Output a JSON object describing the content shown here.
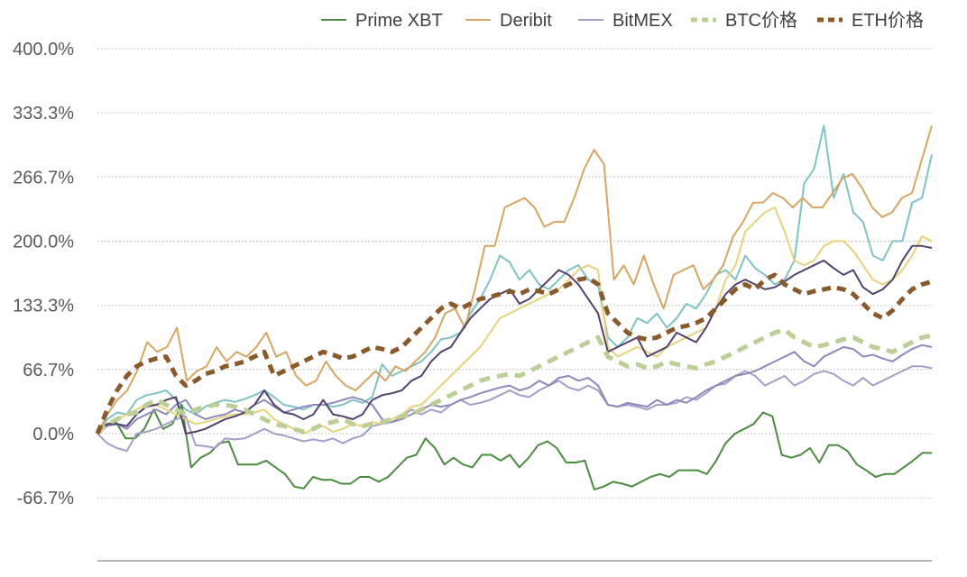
{
  "chart_data": {
    "type": "line",
    "ylim": [
      -0.7,
      4.0
    ],
    "yticks": [
      -0.667,
      0.0,
      0.667,
      1.333,
      2.0,
      2.667,
      3.333,
      4.0
    ],
    "ytick_labels": [
      "-66.7%",
      "0.0%",
      "66.7%",
      "133.3%",
      "200.0%",
      "266.7%",
      "333.3%",
      "400.0%"
    ],
    "grid": true,
    "legend": {
      "position": "top"
    },
    "series": [
      {
        "name": "",
        "color": "#7fc4c4",
        "dash": "none",
        "width": 2,
        "values": [
          0.0,
          0.15,
          0.22,
          0.2,
          0.35,
          0.4,
          0.42,
          0.45,
          0.35,
          0.25,
          0.2,
          0.28,
          0.32,
          0.35,
          0.33,
          0.36,
          0.4,
          0.45,
          0.38,
          0.3,
          0.28,
          0.25,
          0.3,
          0.3,
          0.28,
          0.3,
          0.35,
          0.32,
          0.38,
          0.72,
          0.6,
          0.65,
          0.7,
          0.75,
          0.85,
          0.98,
          1.0,
          1.05,
          1.25,
          1.4,
          1.6,
          1.85,
          1.78,
          1.6,
          1.7,
          1.55,
          1.5,
          1.6,
          1.7,
          1.75,
          1.6,
          1.55,
          1.0,
          0.9,
          1.0,
          1.2,
          1.15,
          1.25,
          1.1,
          1.2,
          1.35,
          1.3,
          1.45,
          1.65,
          1.7,
          1.6,
          1.85,
          1.72,
          1.65,
          1.55,
          1.6,
          1.8,
          2.6,
          2.75,
          3.2,
          2.45,
          2.7,
          2.3,
          2.2,
          1.85,
          1.8,
          2.0,
          2.0,
          2.4,
          2.45,
          2.9
        ]
      },
      {
        "name": "Prime XBT",
        "color": "#4a8c3f",
        "dash": "none",
        "width": 2,
        "values": [
          0.0,
          0.1,
          0.12,
          -0.05,
          -0.05,
          0.05,
          0.25,
          0.05,
          0.1,
          0.3,
          -0.35,
          -0.25,
          -0.2,
          -0.1,
          -0.08,
          -0.32,
          -0.32,
          -0.32,
          -0.28,
          -0.35,
          -0.42,
          -0.55,
          -0.57,
          -0.45,
          -0.48,
          -0.48,
          -0.52,
          -0.52,
          -0.45,
          -0.45,
          -0.5,
          -0.45,
          -0.35,
          -0.25,
          -0.22,
          -0.05,
          -0.15,
          -0.32,
          -0.25,
          -0.32,
          -0.35,
          -0.22,
          -0.22,
          -0.28,
          -0.22,
          -0.35,
          -0.25,
          -0.12,
          -0.08,
          -0.15,
          -0.3,
          -0.3,
          -0.28,
          -0.58,
          -0.55,
          -0.5,
          -0.52,
          -0.55,
          -0.5,
          -0.45,
          -0.42,
          -0.45,
          -0.38,
          -0.38,
          -0.38,
          -0.42,
          -0.28,
          -0.1,
          0.0,
          0.05,
          0.1,
          0.22,
          0.18,
          -0.22,
          -0.25,
          -0.22,
          -0.15,
          -0.3,
          -0.12,
          -0.12,
          -0.18,
          -0.32,
          -0.38,
          -0.45,
          -0.42,
          -0.42,
          -0.35,
          -0.28,
          -0.2,
          -0.2
        ]
      },
      {
        "name": "Deribit",
        "color": "#d9a562",
        "dash": "none",
        "width": 2,
        "values": [
          0.0,
          0.2,
          0.35,
          0.45,
          0.65,
          0.95,
          0.85,
          0.9,
          1.1,
          0.55,
          0.65,
          0.7,
          0.9,
          0.75,
          0.85,
          0.8,
          0.9,
          1.05,
          0.8,
          0.85,
          0.6,
          0.5,
          0.55,
          0.75,
          0.6,
          0.5,
          0.45,
          0.55,
          0.65,
          0.55,
          0.7,
          0.65,
          0.75,
          0.85,
          1.0,
          1.25,
          1.3,
          1.1,
          1.5,
          1.95,
          1.95,
          2.35,
          2.4,
          2.45,
          2.35,
          2.15,
          2.2,
          2.2,
          2.45,
          2.75,
          2.95,
          2.8,
          1.6,
          1.75,
          1.55,
          1.85,
          1.55,
          1.3,
          1.65,
          1.7,
          1.75,
          1.5,
          1.6,
          1.75,
          2.05,
          2.2,
          2.4,
          2.4,
          2.5,
          2.45,
          2.35,
          2.45,
          2.35,
          2.35,
          2.5,
          2.65,
          2.7,
          2.55,
          2.35,
          2.25,
          2.3,
          2.45,
          2.5,
          2.85,
          3.2
        ]
      },
      {
        "name": "BitMEX",
        "color": "#a39fc9",
        "dash": "none",
        "width": 2,
        "values": [
          0.0,
          -0.1,
          -0.15,
          -0.18,
          0.0,
          0.02,
          0.05,
          0.1,
          0.15,
          0.18,
          -0.12,
          -0.13,
          -0.15,
          -0.05,
          -0.06,
          -0.05,
          0.0,
          0.05,
          0.0,
          -0.02,
          -0.05,
          -0.08,
          -0.06,
          -0.08,
          -0.05,
          -0.1,
          -0.05,
          -0.02,
          0.08,
          0.1,
          0.12,
          0.18,
          0.25,
          0.2,
          0.25,
          0.22,
          0.3,
          0.35,
          0.3,
          0.32,
          0.35,
          0.4,
          0.45,
          0.4,
          0.38,
          0.45,
          0.5,
          0.55,
          0.48,
          0.45,
          0.5,
          0.45,
          0.3,
          0.28,
          0.3,
          0.28,
          0.25,
          0.3,
          0.3,
          0.32,
          0.38,
          0.35,
          0.42,
          0.5,
          0.52,
          0.6,
          0.65,
          0.6,
          0.5,
          0.55,
          0.6,
          0.5,
          0.55,
          0.62,
          0.65,
          0.62,
          0.55,
          0.5,
          0.58,
          0.5,
          0.55,
          0.6,
          0.65,
          0.7,
          0.7,
          0.68
        ]
      },
      {
        "name": "",
        "color": "#8e89bd",
        "dash": "none",
        "width": 2,
        "values": [
          0.0,
          0.08,
          0.1,
          0.05,
          0.15,
          0.2,
          0.25,
          0.2,
          0.3,
          0.35,
          0.2,
          0.15,
          0.18,
          0.2,
          0.25,
          0.22,
          0.3,
          0.35,
          0.28,
          0.22,
          0.25,
          0.28,
          0.3,
          0.3,
          0.32,
          0.35,
          0.38,
          0.35,
          0.3,
          0.15,
          0.12,
          0.15,
          0.2,
          0.25,
          0.3,
          0.28,
          0.3,
          0.35,
          0.38,
          0.42,
          0.45,
          0.48,
          0.5,
          0.45,
          0.48,
          0.55,
          0.5,
          0.58,
          0.6,
          0.55,
          0.58,
          0.5,
          0.3,
          0.28,
          0.32,
          0.3,
          0.28,
          0.35,
          0.3,
          0.35,
          0.32,
          0.38,
          0.45,
          0.5,
          0.55,
          0.6,
          0.62,
          0.65,
          0.7,
          0.75,
          0.8,
          0.85,
          0.75,
          0.7,
          0.8,
          0.85,
          0.9,
          0.88,
          0.8,
          0.82,
          0.78,
          0.75,
          0.82,
          0.88,
          0.92,
          0.9
        ]
      },
      {
        "name": "",
        "color": "#e8d27a",
        "dash": "none",
        "width": 2,
        "values": [
          0.0,
          0.1,
          0.15,
          0.2,
          0.25,
          0.3,
          0.3,
          0.25,
          0.2,
          0.15,
          0.1,
          0.12,
          0.15,
          0.18,
          0.2,
          0.2,
          0.22,
          0.25,
          0.15,
          0.1,
          0.05,
          0.0,
          0.05,
          0.08,
          0.02,
          0.05,
          0.1,
          0.08,
          0.12,
          0.1,
          0.15,
          0.2,
          0.28,
          0.3,
          0.4,
          0.5,
          0.6,
          0.7,
          0.8,
          0.9,
          1.05,
          1.2,
          1.25,
          1.3,
          1.35,
          1.4,
          1.45,
          1.5,
          1.6,
          1.7,
          1.75,
          1.7,
          0.9,
          0.8,
          0.85,
          0.9,
          0.85,
          0.8,
          0.9,
          0.95,
          1.0,
          1.05,
          1.1,
          1.3,
          1.6,
          1.75,
          2.1,
          2.2,
          2.3,
          2.35,
          2.1,
          1.8,
          1.75,
          1.8,
          1.95,
          2.0,
          2.0,
          1.9,
          1.75,
          1.6,
          1.55,
          1.6,
          1.7,
          1.85,
          2.05,
          2.0
        ]
      },
      {
        "name": "",
        "color": "#54426e",
        "dash": "none",
        "width": 2,
        "values": [
          0.0,
          0.1,
          0.1,
          0.08,
          0.2,
          0.28,
          0.3,
          0.35,
          0.38,
          0.0,
          0.02,
          0.05,
          0.1,
          0.15,
          0.18,
          0.22,
          0.3,
          0.45,
          0.3,
          0.22,
          0.2,
          0.15,
          0.2,
          0.35,
          0.2,
          0.18,
          0.15,
          0.2,
          0.35,
          0.4,
          0.42,
          0.45,
          0.55,
          0.6,
          0.75,
          0.85,
          0.9,
          1.05,
          1.2,
          1.3,
          1.4,
          1.45,
          1.5,
          1.35,
          1.4,
          1.5,
          1.6,
          1.7,
          1.65,
          1.55,
          1.4,
          1.25,
          0.85,
          0.9,
          0.95,
          1.0,
          0.8,
          0.85,
          0.9,
          1.05,
          1.0,
          0.95,
          1.1,
          1.3,
          1.45,
          1.55,
          1.6,
          1.55,
          1.5,
          1.52,
          1.58,
          1.65,
          1.7,
          1.75,
          1.8,
          1.72,
          1.65,
          1.7,
          1.52,
          1.45,
          1.5,
          1.6,
          1.8,
          1.95,
          1.95,
          1.93
        ]
      },
      {
        "name": "BTC价格",
        "color": "#bccf96",
        "dash": "12 8",
        "width": 5,
        "values": [
          0.0,
          0.1,
          0.15,
          0.2,
          0.22,
          0.3,
          0.35,
          0.3,
          0.25,
          0.2,
          0.25,
          0.28,
          0.3,
          0.3,
          0.28,
          0.25,
          0.2,
          0.15,
          0.1,
          0.08,
          0.05,
          0.02,
          0.05,
          0.1,
          0.12,
          0.15,
          0.1,
          0.08,
          0.1,
          0.12,
          0.15,
          0.18,
          0.2,
          0.25,
          0.3,
          0.35,
          0.4,
          0.45,
          0.5,
          0.55,
          0.58,
          0.6,
          0.62,
          0.6,
          0.65,
          0.7,
          0.75,
          0.8,
          0.85,
          0.9,
          0.95,
          1.0,
          0.8,
          0.75,
          0.7,
          0.72,
          0.68,
          0.7,
          0.75,
          0.72,
          0.7,
          0.68,
          0.72,
          0.75,
          0.8,
          0.85,
          0.9,
          0.95,
          1.0,
          1.05,
          1.08,
          1.0,
          0.95,
          0.9,
          0.92,
          0.95,
          0.98,
          1.0,
          0.95,
          0.9,
          0.88,
          0.85,
          0.9,
          0.95,
          1.0,
          1.02
        ]
      },
      {
        "name": "ETH价格",
        "color": "#8b5a2b",
        "dash": "10 7",
        "width": 5,
        "values": [
          0.0,
          0.25,
          0.45,
          0.6,
          0.7,
          0.75,
          0.78,
          0.8,
          0.6,
          0.5,
          0.55,
          0.62,
          0.65,
          0.7,
          0.72,
          0.75,
          0.8,
          0.85,
          0.6,
          0.65,
          0.7,
          0.75,
          0.8,
          0.85,
          0.82,
          0.78,
          0.8,
          0.85,
          0.9,
          0.88,
          0.85,
          0.9,
          1.0,
          1.1,
          1.2,
          1.3,
          1.35,
          1.3,
          1.35,
          1.4,
          1.42,
          1.45,
          1.48,
          1.45,
          1.5,
          1.48,
          1.45,
          1.5,
          1.55,
          1.6,
          1.62,
          1.55,
          1.25,
          1.15,
          1.05,
          1.0,
          0.98,
          1.0,
          1.05,
          1.1,
          1.12,
          1.15,
          1.2,
          1.3,
          1.4,
          1.5,
          1.55,
          1.5,
          1.6,
          1.65,
          1.55,
          1.5,
          1.45,
          1.48,
          1.5,
          1.52,
          1.5,
          1.45,
          1.35,
          1.25,
          1.2,
          1.28,
          1.4,
          1.5,
          1.55,
          1.58
        ]
      }
    ]
  }
}
